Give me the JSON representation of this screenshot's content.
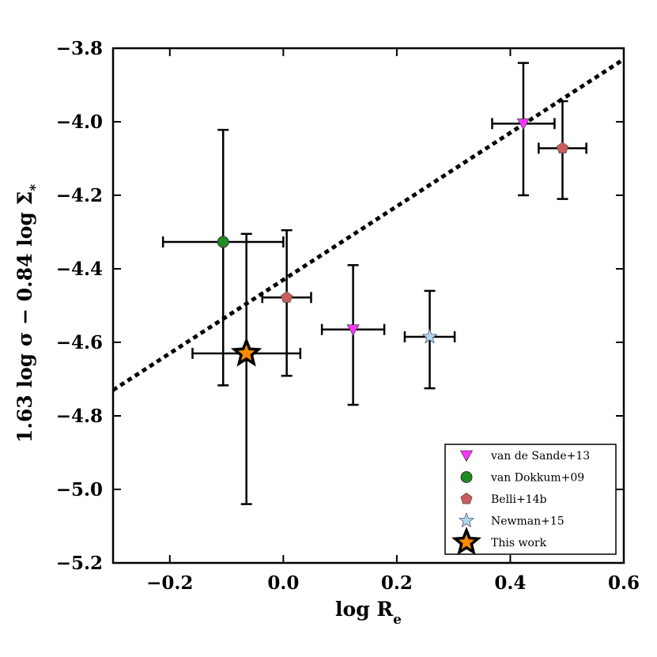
{
  "chart_data": {
    "type": "scatter",
    "xlabel": "log R",
    "xlabel_sub": "e",
    "ylabel": "1.63 log σ − 0.84 log Σ",
    "ylabel_sub": "*",
    "xlim": [
      -0.3,
      0.6
    ],
    "ylim": [
      -5.2,
      -3.8
    ],
    "xticks": [
      -0.2,
      0.0,
      0.2,
      0.4,
      0.6
    ],
    "xtick_labels": [
      "−0.2",
      "0.0",
      "0.2",
      "0.4",
      "0.6"
    ],
    "yticks": [
      -3.8,
      -4.0,
      -4.2,
      -4.4,
      -4.6,
      -4.8,
      -5.0,
      -5.2
    ],
    "ytick_labels": [
      "−3.8",
      "−4.0",
      "−4.2",
      "−4.4",
      "−4.6",
      "−4.8",
      "−5.0",
      "−5.2"
    ],
    "fit_line": {
      "style": "dotted",
      "color": "#000000",
      "points": [
        [
          -0.3,
          -4.73
        ],
        [
          0.6,
          -3.83
        ]
      ]
    },
    "legend_position": "lower-right",
    "series": [
      {
        "name": "van de Sande+13",
        "marker": "triangle-down",
        "color": "#ff33ff",
        "points": [
          {
            "x": 0.423,
            "y": -4.005,
            "xerr": 0.055,
            "yerr_lo": 0.195,
            "yerr_hi": 0.165
          },
          {
            "x": 0.123,
            "y": -4.565,
            "xerr": 0.055,
            "yerr_lo": 0.205,
            "yerr_hi": 0.175
          }
        ]
      },
      {
        "name": "van Dokkum+09",
        "marker": "circle",
        "color": "#228b22",
        "points": [
          {
            "x": -0.106,
            "y": -4.327,
            "xerr": 0.106,
            "yerr_lo": 0.39,
            "yerr_hi": 0.305
          }
        ]
      },
      {
        "name": "Belli+14b",
        "marker": "pentagon",
        "color": "#cd5c5c",
        "points": [
          {
            "x": 0.492,
            "y": -4.072,
            "xerr": 0.042,
            "yerr_lo": 0.138,
            "yerr_hi": 0.128
          },
          {
            "x": 0.006,
            "y": -4.478,
            "xerr": 0.043,
            "yerr_lo": 0.213,
            "yerr_hi": 0.183
          }
        ]
      },
      {
        "name": "Newman+15",
        "marker": "star",
        "color": "#add8e6",
        "points": [
          {
            "x": 0.258,
            "y": -4.585,
            "xerr": 0.044,
            "yerr_lo": 0.14,
            "yerr_hi": 0.125
          }
        ]
      },
      {
        "name": "This work",
        "marker": "star-large",
        "color": "#ff8c00",
        "points": [
          {
            "x": -0.065,
            "y": -4.63,
            "xerr": 0.095,
            "yerr_lo": 0.41,
            "yerr_hi": 0.325
          }
        ]
      }
    ]
  }
}
